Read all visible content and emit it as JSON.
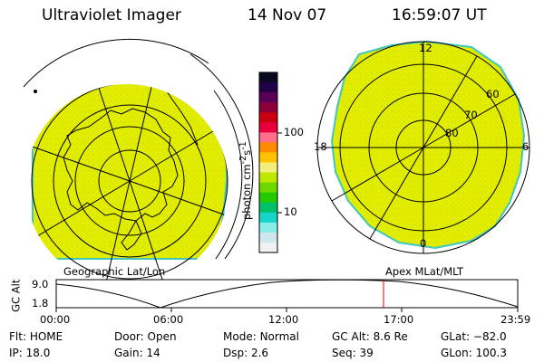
{
  "header": {
    "title": "Ultraviolet Imager",
    "date": "14 Nov 07",
    "time": "16:59:07 UT"
  },
  "colorbar": {
    "unit_main": "photon cm",
    "unit_sup1": "-2",
    "unit_mid": "s",
    "unit_sup2": "-1",
    "tick_100": "100",
    "tick_10": "10",
    "colors": [
      "#0a0a1e",
      "#23004a",
      "#5a0057",
      "#8c003a",
      "#c80010",
      "#e8003c",
      "#ff6f8a",
      "#ff8c00",
      "#ffc200",
      "#f2ef7a",
      "#bde800",
      "#6fd800",
      "#22c800",
      "#00c06a",
      "#16d4c8",
      "#88ece8",
      "#cfe7ea",
      "#eef1f2"
    ]
  },
  "panels": {
    "left_label": "Geographic Lat/Lon",
    "right_label": "Apex MLat/MLT",
    "mlt_labels": [
      "12",
      "6",
      "0",
      "18"
    ],
    "mlat_labels": [
      "60",
      "70",
      "80"
    ]
  },
  "timeline": {
    "ylabel": "GC Alt",
    "y_top": "9.0",
    "y_bottom": "1.8",
    "x_ticks": [
      "00:00",
      "06:00",
      "12:00",
      "17:00",
      "23:59"
    ]
  },
  "footer": {
    "row1": [
      {
        "label": "Flt:",
        "value": "HOME"
      },
      {
        "label": "Door:",
        "value": "Open"
      },
      {
        "label": "Mode:",
        "value": "Normal"
      },
      {
        "label": "GC Alt:",
        "value": "8.6 Re"
      },
      {
        "label": "GLat:",
        "value": "−82.0"
      }
    ],
    "row2": [
      {
        "label": "IP:",
        "value": "18.0"
      },
      {
        "label": "Gain:",
        "value": "14"
      },
      {
        "label": "Dsp:",
        "value": "2.6"
      },
      {
        "label": "Seq:",
        "value": "39"
      },
      {
        "label": "GLon:",
        "value": "100.3"
      }
    ]
  },
  "colors": {
    "fill": "#e2ec00",
    "fill_dots": "#b6dc00",
    "rim": "#3fc7c0",
    "cursor": "#e00000"
  }
}
